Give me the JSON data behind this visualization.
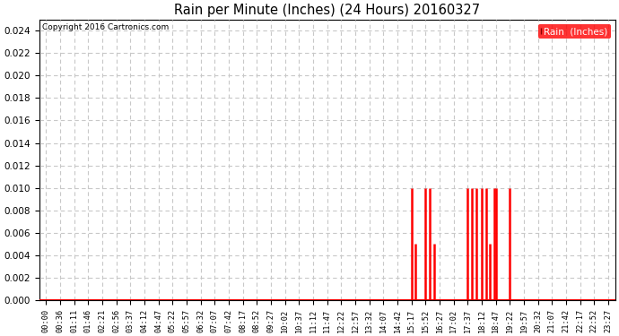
{
  "title": "Rain per Minute (Inches) (24 Hours) 20160327",
  "copyright_text": "Copyright 2016 Cartronics.com",
  "legend_label": "Rain  (Inches)",
  "ylim": [
    0.0,
    0.025
  ],
  "yticks": [
    0.0,
    0.002,
    0.004,
    0.006,
    0.008,
    0.01,
    0.012,
    0.014,
    0.016,
    0.018,
    0.02,
    0.022,
    0.024
  ],
  "background_color": "#ffffff",
  "grid_color": "#c8c8c8",
  "bar_color": "#ff0000",
  "baseline_color": "#ff0000",
  "x_tick_labels": [
    "00:00",
    "00:36",
    "01:11",
    "01:46",
    "02:21",
    "02:56",
    "03:37",
    "04:12",
    "04:47",
    "05:22",
    "05:57",
    "06:32",
    "07:07",
    "07:42",
    "08:17",
    "08:52",
    "09:27",
    "10:02",
    "10:37",
    "11:12",
    "11:47",
    "12:22",
    "12:57",
    "13:32",
    "14:07",
    "14:42",
    "15:17",
    "15:52",
    "16:27",
    "17:02",
    "17:37",
    "18:12",
    "18:47",
    "19:22",
    "19:57",
    "20:32",
    "21:07",
    "21:42",
    "22:17",
    "22:52",
    "23:27"
  ],
  "rain_events": [
    {
      "idx": 26.0,
      "value": 0.01
    },
    {
      "idx": 26.3,
      "value": 0.005
    },
    {
      "idx": 27.0,
      "value": 0.01
    },
    {
      "idx": 27.3,
      "value": 0.01
    },
    {
      "idx": 27.6,
      "value": 0.005
    },
    {
      "idx": 30.0,
      "value": 0.01
    },
    {
      "idx": 30.3,
      "value": 0.01
    },
    {
      "idx": 30.6,
      "value": 0.01
    },
    {
      "idx": 31.0,
      "value": 0.01
    },
    {
      "idx": 31.3,
      "value": 0.01
    },
    {
      "idx": 31.6,
      "value": 0.005
    },
    {
      "idx": 31.9,
      "value": 0.01
    },
    {
      "idx": 32.0,
      "value": 0.01
    },
    {
      "idx": 33.0,
      "value": 0.01
    }
  ],
  "figsize": [
    6.9,
    3.75
  ],
  "dpi": 100
}
